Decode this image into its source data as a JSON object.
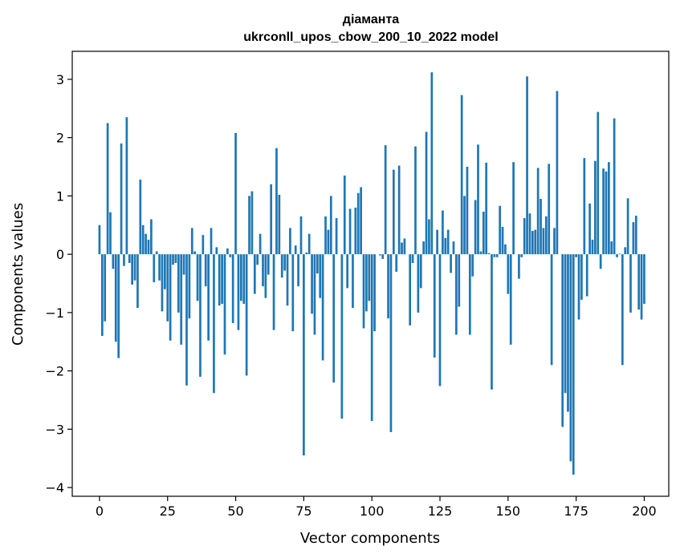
{
  "chart_data": {
    "type": "bar",
    "title_line1": "діаманта",
    "title_line2": "ukrconll_upos_cbow_200_10_2022 model",
    "xlabel": "Vector components",
    "ylabel": "Components values",
    "xlim": [
      -10,
      209
    ],
    "ylim": [
      -4.15,
      3.48
    ],
    "xticks": [
      0,
      25,
      50,
      75,
      100,
      125,
      150,
      175,
      200
    ],
    "yticks": [
      3,
      2,
      1,
      0,
      -1,
      -2,
      -3,
      -4
    ],
    "xtick_labels": [
      "0",
      "25",
      "50",
      "75",
      "100",
      "125",
      "150",
      "175",
      "200"
    ],
    "ytick_labels": [
      "3",
      "2",
      "1",
      "0",
      "−1",
      "−2",
      "−3",
      "−4"
    ],
    "bar_color": "#1f77b4",
    "grid": false,
    "values": [
      0.5,
      -1.4,
      -1.15,
      2.25,
      0.72,
      -0.25,
      -1.5,
      -1.78,
      1.9,
      -0.2,
      2.35,
      -0.15,
      -0.52,
      -0.45,
      -0.92,
      1.28,
      0.5,
      0.35,
      0.25,
      0.6,
      -0.48,
      0.05,
      -0.45,
      -0.98,
      -0.6,
      -1.15,
      -1.48,
      -0.18,
      -0.15,
      -1.0,
      -1.55,
      -0.35,
      -2.25,
      -1.1,
      0.45,
      0.05,
      -0.8,
      -2.1,
      0.33,
      -0.55,
      -1.48,
      0.45,
      -2.38,
      0.12,
      -0.88,
      -0.85,
      -1.72,
      0.1,
      -0.05,
      -1.18,
      2.08,
      -1.3,
      -0.8,
      -0.85,
      -2.08,
      1.0,
      1.08,
      -0.68,
      -0.18,
      0.35,
      -0.55,
      -0.75,
      -0.35,
      1.2,
      -1.3,
      1.82,
      1.02,
      -0.4,
      -0.28,
      -0.88,
      0.45,
      -1.32,
      0.15,
      -0.55,
      0.65,
      -3.45,
      0.03,
      0.35,
      -1.02,
      -1.38,
      -0.33,
      -0.75,
      -1.82,
      0.65,
      0.42,
      1.0,
      -2.2,
      0.62,
      0.0,
      -2.82,
      1.35,
      -0.58,
      0.78,
      -0.92,
      0.8,
      1.05,
      1.15,
      -1.27,
      -0.98,
      -0.8,
      -2.86,
      -1.32,
      0.0,
      -0.02,
      -0.08,
      1.87,
      -1.1,
      -3.05,
      1.45,
      -0.3,
      1.52,
      0.2,
      0.27,
      0.0,
      -1.22,
      -0.15,
      1.85,
      -1.0,
      -0.58,
      0.22,
      2.1,
      0.6,
      3.12,
      -1.77,
      0.42,
      -2.26,
      0.75,
      0.28,
      0.42,
      -0.32,
      0.22,
      -1.38,
      -0.9,
      2.73,
      1.0,
      1.5,
      -1.38,
      -0.38,
      0.93,
      1.88,
      0.05,
      0.73,
      1.57,
      0.02,
      -2.32,
      -0.05,
      -0.05,
      0.83,
      0.47,
      0.17,
      -0.68,
      -1.55,
      1.58,
      0.0,
      -0.42,
      -0.05,
      0.62,
      3.05,
      0.7,
      0.4,
      0.42,
      1.48,
      0.95,
      0.45,
      0.65,
      1.55,
      -1.9,
      0.45,
      2.8,
      0.0,
      -2.96,
      -2.38,
      -2.7,
      -3.55,
      -3.78,
      -0.05,
      -1.12,
      -0.78,
      1.65,
      -0.72,
      0.87,
      0.25,
      1.6,
      2.44,
      -0.25,
      1.47,
      1.42,
      1.58,
      0.22,
      2.33,
      -0.05,
      0.01,
      -1.9,
      0.12,
      0.96,
      -1.0,
      0.55,
      0.66,
      -0.95,
      -1.12,
      -0.85
    ]
  }
}
